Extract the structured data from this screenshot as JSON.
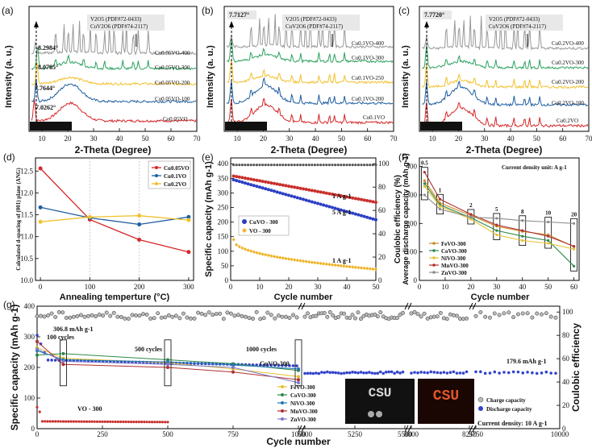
{
  "panel_letters": [
    "(a)",
    "(b)",
    "(c)",
    "(d)",
    "(e)",
    "(f)",
    "(g)"
  ],
  "chart_data": [
    {
      "panel": "a",
      "type": "line",
      "xlabel": "2-Theta (Degree)",
      "ylabel": "Intensity (a. u.)",
      "xlim": [
        5,
        70
      ],
      "xticks": [
        10,
        20,
        30,
        40,
        50,
        60,
        70
      ],
      "series": [
        {
          "name": "Cu0.05VO",
          "color": "#d62728",
          "peak": 7.0262
        },
        {
          "name": "Cu0.05VO-100",
          "color": "#1f5fa0",
          "peak": 7.7644
        },
        {
          "name": "Cu0.05VO-200",
          "color": "#f2c12e",
          "peak": 8.0785
        },
        {
          "name": "Cu0.05VO-300",
          "color": "#2ca25f",
          "peak": 8.2984
        },
        {
          "name": "Cu0.05VO-400",
          "color": "#999999",
          "peak": null
        }
      ],
      "annotations": [
        "8.2984°",
        "8.0785°",
        "7.7644°",
        "7.0262°",
        "(001) plane",
        "V2O5 (PDF#72-0433)",
        "CuV2O6 (PDF#74-2117)"
      ]
    },
    {
      "panel": "b",
      "type": "line",
      "xlabel": "2-Theta (Degree)",
      "ylabel": "Intensity (a. u.)",
      "xlim": [
        5,
        70
      ],
      "xticks": [
        10,
        20,
        30,
        40,
        50,
        60,
        70
      ],
      "series": [
        {
          "name": "Cu0.1VO",
          "color": "#d62728"
        },
        {
          "name": "Cu0.1VO-200",
          "color": "#1f5fa0"
        },
        {
          "name": "Cu0.1VO-250",
          "color": "#f2c12e"
        },
        {
          "name": "Cu0.1VO-300",
          "color": "#2ca25f"
        },
        {
          "name": "Cu0.1VO-400",
          "color": "#999999"
        }
      ],
      "annotations": [
        "7.7127°",
        "(001) plane",
        "V2O5 (PDF#72-0433)",
        "CuV2O6 (PDF#74-2117)"
      ]
    },
    {
      "panel": "c",
      "type": "line",
      "xlabel": "2-Theta (Degree)",
      "ylabel": "Intensity (a. u.)",
      "xlim": [
        5,
        70
      ],
      "xticks": [
        10,
        20,
        30,
        40,
        50,
        60,
        70
      ],
      "series": [
        {
          "name": "Cu0.2VO",
          "color": "#d62728"
        },
        {
          "name": "Cu0.2VO-100",
          "color": "#1f5fa0"
        },
        {
          "name": "Cu0.2VO-200",
          "color": "#f2c12e"
        },
        {
          "name": "Cu0.2VO-300",
          "color": "#2ca25f"
        },
        {
          "name": "Cu0.2VO-400",
          "color": "#999999"
        }
      ],
      "annotations": [
        "7.7720°",
        "(001) plane",
        "V2O5 (PDF#72-0433)",
        "CuV2O6 (PDF#74-2117)"
      ]
    },
    {
      "panel": "d",
      "type": "line",
      "xlabel": "Annealing temperture (°C)",
      "ylabel": "Calculated d-spacing of (001) plane (ANG)",
      "xlim": [
        -10,
        310
      ],
      "ylim": [
        10.0,
        12.8
      ],
      "xticks": [
        0,
        100,
        200,
        300
      ],
      "yticks": [
        10.0,
        10.5,
        11.0,
        11.5,
        12.0,
        12.5
      ],
      "x": [
        0,
        100,
        200,
        300
      ],
      "series": [
        {
          "name": "Cu0.05VO",
          "color": "#d62728",
          "values": [
            12.56,
            11.39,
            10.93,
            10.65
          ]
        },
        {
          "name": "Cu0.1VO",
          "color": "#1f5fa0",
          "values": [
            11.67,
            11.43,
            11.28,
            11.45
          ]
        },
        {
          "name": "Cu0.2VO",
          "color": "#f2c12e",
          "values": [
            11.34,
            11.45,
            11.48,
            11.38
          ]
        }
      ]
    },
    {
      "panel": "e",
      "type": "scatter",
      "xlabel": "Cycle number",
      "ylabel": "Specific capacity (mAh g-1)",
      "ylabel2": "Coulobic efficiency (%)",
      "xlim": [
        0,
        50
      ],
      "ylim": [
        0,
        420
      ],
      "y2lim": [
        0,
        105
      ],
      "xticks": [
        0,
        10,
        20,
        30,
        40,
        50
      ],
      "yticks": [
        0,
        50,
        100,
        150,
        200,
        250,
        300,
        350,
        400
      ],
      "y2ticks": [
        0,
        20,
        40,
        60,
        80,
        100
      ],
      "series": [
        {
          "name": "CuVO - 300",
          "label": "5 A g-1",
          "color": "#2b3fc4",
          "start": 345,
          "end": 208
        },
        {
          "name": "CuVO - 300",
          "label": "1 A g-1",
          "color": "#c9302c",
          "start": 358,
          "end": 268
        },
        {
          "name": "VO - 300",
          "label": "1 A g-1",
          "color": "#f0b429",
          "start": 140,
          "end": 38
        },
        {
          "name": "Coulombic efficiency",
          "color": "#333333",
          "value": 99
        }
      ],
      "annotations": [
        "1 A g-1",
        "5 A g-1",
        "1 A g-1"
      ]
    },
    {
      "panel": "f",
      "type": "line",
      "xlabel": "Cycle number",
      "ylabel": "Average discharge capacity (mAh g-1)",
      "xlim": [
        0,
        62
      ],
      "ylim": [
        0,
        430
      ],
      "xticks": [
        0,
        10,
        20,
        30,
        40,
        50,
        60
      ],
      "yticks": [
        0,
        100,
        200,
        300,
        400
      ],
      "x": [
        2,
        8,
        20,
        30,
        40,
        50,
        60
      ],
      "rate_labels": [
        "0.5",
        "1",
        "2",
        "5",
        "8",
        "10",
        "20"
      ],
      "note": "Current density unit: A g-1",
      "series": [
        {
          "name": "FeVO-300",
          "color": "#c98a2b",
          "values": [
            350,
            272,
            228,
            190,
            172,
            160,
            118
          ]
        },
        {
          "name": "CoVO-300",
          "color": "#2c8a4a",
          "values": [
            340,
            265,
            220,
            175,
            155,
            140,
            50
          ]
        },
        {
          "name": "NiVO-300",
          "color": "#e6c12f",
          "values": [
            330,
            260,
            215,
            160,
            140,
            130,
            110
          ]
        },
        {
          "name": "MnVO-300",
          "color": "#b03030",
          "values": [
            380,
            285,
            232,
            195,
            175,
            155,
            120
          ]
        },
        {
          "name": "ZnVO-300",
          "color": "#8c8c8c",
          "values": [
            300,
            250,
            222,
            218,
            210,
            205,
            200
          ]
        }
      ]
    },
    {
      "panel": "g",
      "type": "scatter",
      "xlabel": "Cycle number",
      "ylabel": "Specific capacity (mAh g-1)",
      "ylabel2": "Coulobic efficiency",
      "ylim": [
        0,
        400
      ],
      "yticks": [
        0,
        100,
        200,
        300,
        400
      ],
      "y2ticks": [
        "0",
        "20",
        "40",
        "60",
        "80",
        "100"
      ],
      "xticks": [
        "0",
        "250",
        "500",
        "750",
        "1000",
        "5000",
        "5250",
        "5500",
        "8000",
        "8250",
        "9750",
        "10000"
      ],
      "annotations": [
        "306.8 mAh g-1",
        "100 cycles",
        "500 cycles",
        "1000 cycles",
        "CuVO-300",
        "VO - 300",
        "179.6 mAh g-1",
        "Current density: 10 A g-1"
      ],
      "legend": [
        "FeVO-300",
        "CoVO-300",
        "NiVO-300",
        "MnVO-300",
        "ZnVO-300"
      ],
      "legend_colors": [
        "#e6c12f",
        "#2c8a4a",
        "#1f78b4",
        "#b03030",
        "#7a7acc"
      ],
      "legend2": [
        "Charge capacity",
        "Discharge capacity"
      ],
      "photo_text": [
        "CSU",
        "CSU"
      ]
    }
  ]
}
